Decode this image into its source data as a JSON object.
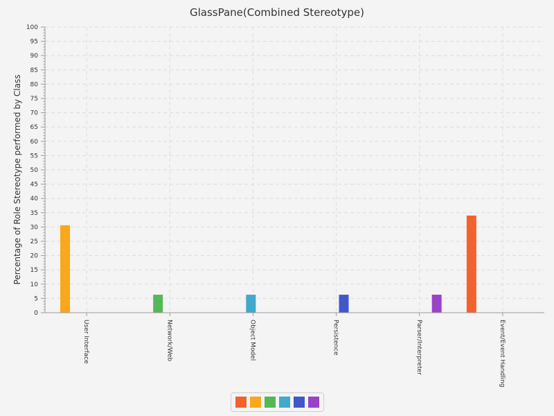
{
  "chart_data": {
    "type": "bar",
    "title": "GlassPane(Combined Stereotype)",
    "xlabel": "",
    "ylabel": "Percentage of Role Stereotype performed by Class",
    "ylim": [
      0,
      100
    ],
    "yticks": [
      0,
      5,
      10,
      15,
      20,
      25,
      30,
      35,
      40,
      45,
      50,
      55,
      60,
      65,
      70,
      75,
      80,
      85,
      90,
      95,
      100
    ],
    "grid": true,
    "legend_position": "bottom",
    "categories": [
      "User Interface",
      "Network/Web",
      "Object Model",
      "Persistence",
      "Parser/Interpreter",
      "Event/Event Handling"
    ],
    "series_colors": [
      "#f3622d",
      "#fba71b",
      "#57b757",
      "#41a9c9",
      "#4258c9",
      "#9a42c8"
    ],
    "series": [
      {
        "values": [
          0,
          0,
          0,
          0,
          0,
          34
        ]
      },
      {
        "values": [
          30.6,
          0,
          0,
          0,
          0,
          0
        ]
      },
      {
        "values": [
          0,
          6.3,
          0,
          0,
          0,
          0
        ]
      },
      {
        "values": [
          0,
          0,
          6.3,
          0,
          0,
          0
        ]
      },
      {
        "values": [
          0,
          0,
          0,
          6.3,
          0,
          0
        ]
      },
      {
        "values": [
          0,
          0,
          0,
          0,
          6.3,
          0
        ]
      }
    ]
  }
}
